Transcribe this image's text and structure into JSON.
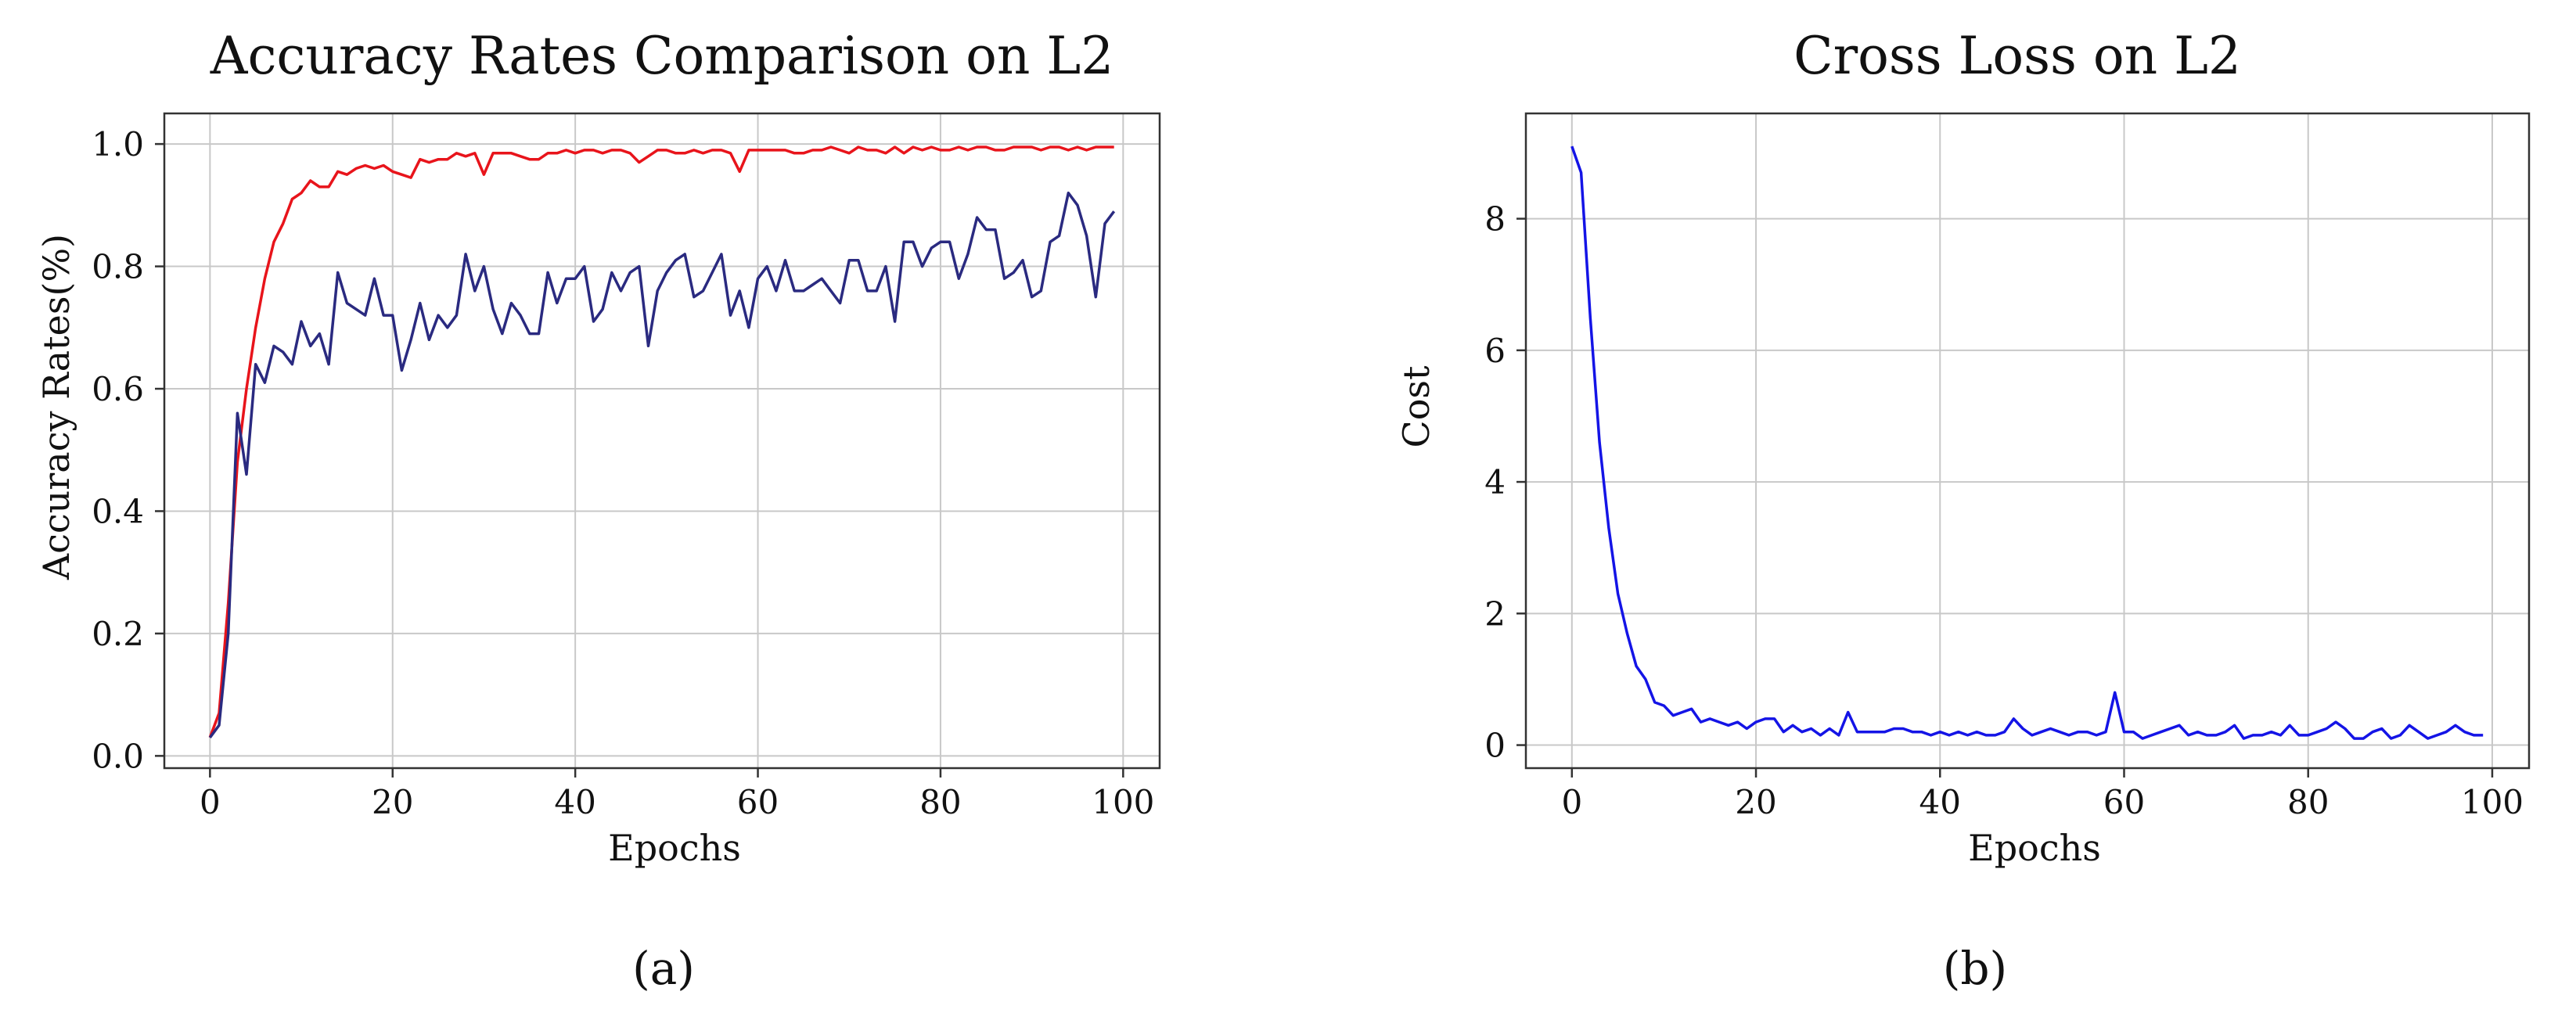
{
  "chart_data": [
    {
      "type": "line",
      "title": "Accuracy Rates Comparison on L2",
      "xlabel": "Epochs",
      "ylabel": "Accuracy  Rates(%)",
      "panel_label": "(a)",
      "xlim": [
        -5,
        104
      ],
      "ylim": [
        -0.02,
        1.05
      ],
      "xticks": [
        0,
        20,
        40,
        60,
        80,
        100
      ],
      "yticks": [
        0.0,
        0.2,
        0.4,
        0.6,
        0.8,
        1.0
      ],
      "xtick_labels": [
        "0",
        "20",
        "40",
        "60",
        "80",
        "100"
      ],
      "ytick_labels": [
        "0.0",
        "0.2",
        "0.4",
        "0.6",
        "0.8",
        "1.0"
      ],
      "grid": true,
      "series": [
        {
          "color": "#e8141b",
          "x": [
            0,
            1,
            2,
            3,
            4,
            5,
            6,
            7,
            8,
            9,
            10,
            11,
            12,
            13,
            14,
            15,
            16,
            17,
            18,
            19,
            20,
            21,
            22,
            23,
            24,
            25,
            26,
            27,
            28,
            29,
            30,
            31,
            32,
            33,
            34,
            35,
            36,
            37,
            38,
            39,
            40,
            41,
            42,
            43,
            44,
            45,
            46,
            47,
            48,
            49,
            50,
            51,
            52,
            53,
            54,
            55,
            56,
            57,
            58,
            59,
            60,
            61,
            62,
            63,
            64,
            65,
            66,
            67,
            68,
            69,
            70,
            71,
            72,
            73,
            74,
            75,
            76,
            77,
            78,
            79,
            80,
            81,
            82,
            83,
            84,
            85,
            86,
            87,
            88,
            89,
            90,
            91,
            92,
            93,
            94,
            95,
            96,
            97,
            98,
            99
          ],
          "y": [
            0.03,
            0.07,
            0.25,
            0.48,
            0.6,
            0.7,
            0.78,
            0.84,
            0.87,
            0.91,
            0.92,
            0.94,
            0.93,
            0.93,
            0.955,
            0.95,
            0.96,
            0.965,
            0.96,
            0.965,
            0.955,
            0.95,
            0.945,
            0.975,
            0.97,
            0.975,
            0.975,
            0.985,
            0.98,
            0.985,
            0.95,
            0.985,
            0.985,
            0.985,
            0.98,
            0.975,
            0.975,
            0.985,
            0.985,
            0.99,
            0.985,
            0.99,
            0.99,
            0.985,
            0.99,
            0.99,
            0.985,
            0.97,
            0.98,
            0.99,
            0.99,
            0.985,
            0.985,
            0.99,
            0.985,
            0.99,
            0.99,
            0.985,
            0.955,
            0.99,
            0.99,
            0.99,
            0.99,
            0.99,
            0.985,
            0.985,
            0.99,
            0.99,
            0.995,
            0.99,
            0.985,
            0.995,
            0.99,
            0.99,
            0.985,
            0.995,
            0.985,
            0.995,
            0.99,
            0.995,
            0.99,
            0.99,
            0.995,
            0.99,
            0.995,
            0.995,
            0.99,
            0.99,
            0.995,
            0.995,
            0.995,
            0.99,
            0.995,
            0.995,
            0.99,
            0.995,
            0.99,
            0.995,
            0.995,
            0.995
          ]
        },
        {
          "color": "#2a2a80",
          "x": [
            0,
            1,
            2,
            3,
            4,
            5,
            6,
            7,
            8,
            9,
            10,
            11,
            12,
            13,
            14,
            15,
            16,
            17,
            18,
            19,
            20,
            21,
            22,
            23,
            24,
            25,
            26,
            27,
            28,
            29,
            30,
            31,
            32,
            33,
            34,
            35,
            36,
            37,
            38,
            39,
            40,
            41,
            42,
            43,
            44,
            45,
            46,
            47,
            48,
            49,
            50,
            51,
            52,
            53,
            54,
            55,
            56,
            57,
            58,
            59,
            60,
            61,
            62,
            63,
            64,
            65,
            66,
            67,
            68,
            69,
            70,
            71,
            72,
            73,
            74,
            75,
            76,
            77,
            78,
            79,
            80,
            81,
            82,
            83,
            84,
            85,
            86,
            87,
            88,
            89,
            90,
            91,
            92,
            93,
            94,
            95,
            96,
            97,
            98,
            99
          ],
          "y": [
            0.03,
            0.05,
            0.2,
            0.56,
            0.46,
            0.64,
            0.61,
            0.67,
            0.66,
            0.64,
            0.71,
            0.67,
            0.69,
            0.64,
            0.79,
            0.74,
            0.73,
            0.72,
            0.78,
            0.72,
            0.72,
            0.63,
            0.68,
            0.74,
            0.68,
            0.72,
            0.7,
            0.72,
            0.82,
            0.76,
            0.8,
            0.73,
            0.69,
            0.74,
            0.72,
            0.69,
            0.69,
            0.79,
            0.74,
            0.78,
            0.78,
            0.8,
            0.71,
            0.73,
            0.79,
            0.76,
            0.79,
            0.8,
            0.67,
            0.76,
            0.79,
            0.81,
            0.82,
            0.75,
            0.76,
            0.79,
            0.82,
            0.72,
            0.76,
            0.7,
            0.78,
            0.8,
            0.76,
            0.81,
            0.76,
            0.76,
            0.77,
            0.78,
            0.76,
            0.74,
            0.81,
            0.81,
            0.76,
            0.76,
            0.8,
            0.71,
            0.84,
            0.84,
            0.8,
            0.83,
            0.84,
            0.84,
            0.78,
            0.82,
            0.88,
            0.86,
            0.86,
            0.78,
            0.79,
            0.81,
            0.75,
            0.76,
            0.84,
            0.85,
            0.92,
            0.9,
            0.85,
            0.75,
            0.87,
            0.89
          ]
        }
      ]
    },
    {
      "type": "line",
      "title": "Cross Loss on L2",
      "xlabel": "Epochs",
      "ylabel": "Cost",
      "panel_label": "(b)",
      "xlim": [
        -5,
        104
      ],
      "ylim": [
        -0.35,
        9.6
      ],
      "xticks": [
        0,
        20,
        40,
        60,
        80,
        100
      ],
      "yticks": [
        0,
        2,
        4,
        6,
        8
      ],
      "xtick_labels": [
        "0",
        "20",
        "40",
        "60",
        "80",
        "100"
      ],
      "ytick_labels": [
        "0",
        "2",
        "4",
        "6",
        "8"
      ],
      "grid": true,
      "series": [
        {
          "color": "#1414e6",
          "x": [
            0,
            1,
            2,
            3,
            4,
            5,
            6,
            7,
            8,
            9,
            10,
            11,
            12,
            13,
            14,
            15,
            16,
            17,
            18,
            19,
            20,
            21,
            22,
            23,
            24,
            25,
            26,
            27,
            28,
            29,
            30,
            31,
            32,
            33,
            34,
            35,
            36,
            37,
            38,
            39,
            40,
            41,
            42,
            43,
            44,
            45,
            46,
            47,
            48,
            49,
            50,
            51,
            52,
            53,
            54,
            55,
            56,
            57,
            58,
            59,
            60,
            61,
            62,
            63,
            64,
            65,
            66,
            67,
            68,
            69,
            70,
            71,
            72,
            73,
            74,
            75,
            76,
            77,
            78,
            79,
            80,
            81,
            82,
            83,
            84,
            85,
            86,
            87,
            88,
            89,
            90,
            91,
            92,
            93,
            94,
            95,
            96,
            97,
            98,
            99
          ],
          "y": [
            9.1,
            8.7,
            6.5,
            4.6,
            3.3,
            2.3,
            1.7,
            1.2,
            1.0,
            0.65,
            0.6,
            0.45,
            0.5,
            0.55,
            0.35,
            0.4,
            0.35,
            0.3,
            0.35,
            0.25,
            0.35,
            0.4,
            0.4,
            0.2,
            0.3,
            0.2,
            0.25,
            0.15,
            0.25,
            0.15,
            0.5,
            0.2,
            0.2,
            0.2,
            0.2,
            0.25,
            0.25,
            0.2,
            0.2,
            0.15,
            0.2,
            0.15,
            0.2,
            0.15,
            0.2,
            0.15,
            0.15,
            0.2,
            0.4,
            0.25,
            0.15,
            0.2,
            0.25,
            0.2,
            0.15,
            0.2,
            0.2,
            0.15,
            0.2,
            0.8,
            0.2,
            0.2,
            0.1,
            0.15,
            0.2,
            0.25,
            0.3,
            0.15,
            0.2,
            0.15,
            0.15,
            0.2,
            0.3,
            0.1,
            0.15,
            0.15,
            0.2,
            0.15,
            0.3,
            0.15,
            0.15,
            0.2,
            0.25,
            0.35,
            0.25,
            0.1,
            0.1,
            0.2,
            0.25,
            0.1,
            0.15,
            0.3,
            0.2,
            0.1,
            0.15,
            0.2,
            0.3,
            0.2,
            0.15,
            0.15
          ]
        }
      ]
    }
  ]
}
